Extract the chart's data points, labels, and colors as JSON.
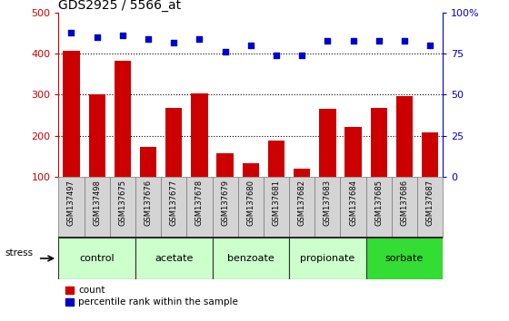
{
  "title": "GDS2925 / 5566_at",
  "samples": [
    "GSM137497",
    "GSM137498",
    "GSM137675",
    "GSM137676",
    "GSM137677",
    "GSM137678",
    "GSM137679",
    "GSM137680",
    "GSM137681",
    "GSM137682",
    "GSM137683",
    "GSM137684",
    "GSM137685",
    "GSM137686",
    "GSM137687"
  ],
  "counts": [
    408,
    302,
    382,
    172,
    267,
    303,
    157,
    132,
    187,
    120,
    265,
    222,
    268,
    297,
    207
  ],
  "percentiles": [
    88,
    85,
    86,
    84,
    82,
    84,
    76,
    80,
    74,
    74,
    83,
    83,
    83,
    83,
    80
  ],
  "groups": [
    {
      "label": "control",
      "start": 0,
      "end": 3
    },
    {
      "label": "acetate",
      "start": 3,
      "end": 6
    },
    {
      "label": "benzoate",
      "start": 6,
      "end": 9
    },
    {
      "label": "propionate",
      "start": 9,
      "end": 12
    },
    {
      "label": "sorbate",
      "start": 12,
      "end": 15
    }
  ],
  "group_colors": [
    "#ccffcc",
    "#ccffcc",
    "#ccffcc",
    "#ccffcc",
    "#33dd33"
  ],
  "bar_color": "#cc0000",
  "dot_color": "#0000cc",
  "left_ylim": [
    100,
    500
  ],
  "right_ylim": [
    0,
    100
  ],
  "left_yticks": [
    100,
    200,
    300,
    400,
    500
  ],
  "right_yticks": [
    0,
    25,
    50,
    75,
    100
  ],
  "right_yticklabels": [
    "0",
    "25",
    "50",
    "75",
    "100%"
  ],
  "grid_values": [
    200,
    300,
    400
  ],
  "stress_label": "stress",
  "legend_labels": [
    "count",
    "percentile rank within the sample"
  ]
}
